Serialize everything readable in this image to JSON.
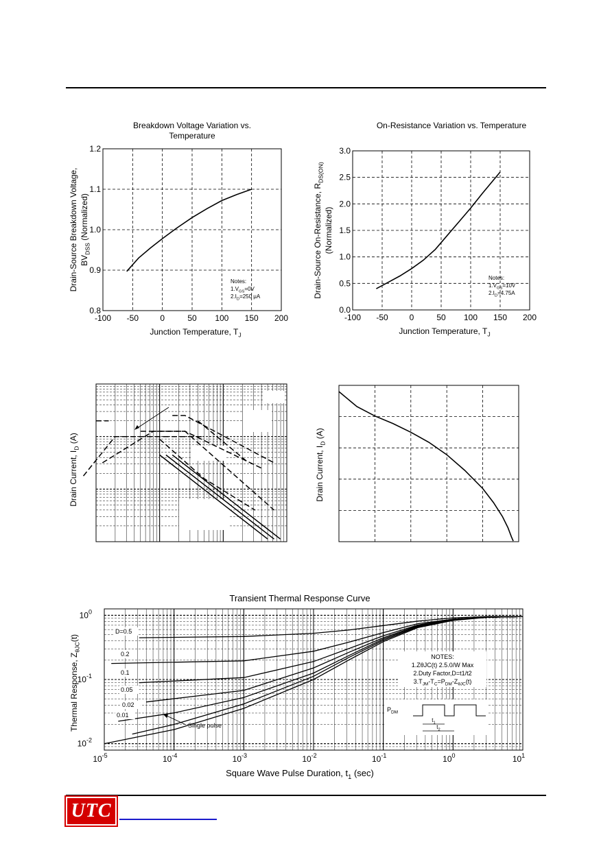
{
  "page": {
    "logo_text": "UTC"
  },
  "chart_data": [
    {
      "id": "bv",
      "type": "line",
      "title_lines": [
        "Breakdown Voltage Variation vs.",
        "Temperature"
      ],
      "xlabel": "Junction Temperature, T",
      "xlabel_sub": "J",
      "ylabel_line1": "Drain-Source Breakdown Voltage,",
      "ylabel_line2": "BV",
      "ylabel_line2_sub": "DSS",
      "ylabel_line2_tail": " (Normalized)",
      "xlim": [
        -100,
        200
      ],
      "ylim": [
        0.8,
        1.2
      ],
      "xticks": [
        -100,
        -50,
        0,
        50,
        100,
        150,
        200
      ],
      "yticks": [
        0.8,
        0.9,
        1.0,
        1.1,
        1.2
      ],
      "ytick_labels": [
        "0.8",
        "0.9",
        "1.0",
        "1.1",
        "1.2"
      ],
      "grid": true,
      "notes": [
        "Notes:",
        "1.V",
        "GS",
        "=0V",
        "2.I",
        "D",
        "=250 μA"
      ],
      "series": [
        {
          "x": [
            -60,
            -40,
            -20,
            0,
            25,
            50,
            75,
            100,
            125,
            150
          ],
          "y": [
            0.897,
            0.93,
            0.955,
            0.978,
            1.005,
            1.03,
            1.052,
            1.072,
            1.087,
            1.1
          ]
        }
      ]
    },
    {
      "id": "rds",
      "type": "line",
      "title_lines": [
        "On-Resistance Variation vs. Temperature"
      ],
      "xlabel": "Junction Temperature, T",
      "xlabel_sub": "J",
      "ylabel_line1": "Drain-Source On-Resistance, R",
      "ylabel_line1_sub": "DS(ON)",
      "ylabel_line2": "(Normalized)",
      "xlim": [
        -100,
        200
      ],
      "ylim": [
        0,
        3
      ],
      "xticks": [
        -100,
        -50,
        0,
        50,
        100,
        150,
        200
      ],
      "yticks": [
        0,
        0.5,
        1.0,
        1.5,
        2.0,
        2.5,
        3.0
      ],
      "ytick_labels": [
        "0.0",
        "0.5",
        "1.0",
        "1.5",
        "2.0",
        "2.5",
        "3.0"
      ],
      "grid": true,
      "notes": [
        "Notes:",
        "1.V",
        "GS",
        "=10V",
        "2.I",
        "D",
        "=4.75A"
      ],
      "series": [
        {
          "x": [
            -60,
            -40,
            -20,
            0,
            20,
            40,
            60,
            80,
            100,
            120,
            150
          ],
          "y": [
            0.4,
            0.52,
            0.64,
            0.78,
            0.94,
            1.14,
            1.4,
            1.66,
            1.92,
            2.2,
            2.6
          ]
        }
      ]
    },
    {
      "id": "soa",
      "type": "line",
      "ylabel": "Drain Current, I",
      "ylabel_sub": "D",
      "ylabel_tail": " (A)",
      "scale": "log-log",
      "x_decades": 3,
      "y_decades": 3,
      "series": [
        {
          "x": [
            -0.2,
            0.3,
            1.7
          ],
          "y": [
            0.05,
            0.8,
            0.8
          ],
          "dash": true
        },
        {
          "x": [
            0.1,
            0.9,
            1.4,
            2.8
          ],
          "y": [
            0.3,
            0.9,
            0.9,
            -0.6
          ],
          "dash": true
        },
        {
          "x": [
            0.7,
            1.4,
            2.6
          ],
          "y": [
            0.9,
            0.9,
            0.2
          ],
          "dash": true
        },
        {
          "x": [
            1.0,
            1.7,
            2.5
          ],
          "y": [
            0.75,
            0.0,
            -0.6
          ],
          "dash": true
        },
        {
          "x": [
            1.2,
            1.4,
            2.8
          ],
          "y": [
            1.2,
            1.2,
            0.3
          ],
          "dash": true
        },
        {
          "x": [
            1.6,
            2.4
          ],
          "y": [
            1.1,
            0.3
          ],
          "dash": true
        },
        {
          "x": [
            0.0,
            0.2
          ],
          "y": [
            1.1,
            1.1
          ],
          "dash": true
        },
        {
          "x": [
            1.0,
            2.7
          ],
          "y": [
            0.45,
            -1.15
          ],
          "dash": false
        },
        {
          "x": [
            1.1,
            2.8
          ],
          "y": [
            0.45,
            -1.15
          ],
          "dash": false
        },
        {
          "x": [
            1.2,
            2.9
          ],
          "y": [
            0.45,
            -1.15
          ],
          "dash": false
        }
      ]
    },
    {
      "id": "derating",
      "type": "line",
      "ylabel": "Drain Current, I",
      "ylabel_sub": "D",
      "ylabel_tail": " (A)",
      "xlim": [
        0,
        5
      ],
      "ylim": [
        0,
        5
      ],
      "grid": true,
      "series": [
        {
          "x": [
            0,
            0.5,
            1.0,
            1.5,
            2.0,
            2.5,
            3.0,
            3.5,
            4.0,
            4.3,
            4.55,
            4.7,
            4.8,
            4.85
          ],
          "y": [
            4.8,
            4.32,
            4.02,
            3.78,
            3.5,
            3.18,
            2.78,
            2.28,
            1.7,
            1.25,
            0.8,
            0.45,
            0.15,
            0.02
          ]
        }
      ]
    },
    {
      "id": "zth",
      "type": "line",
      "title": "Transient Thermal Response Curve",
      "xlabel": "Square Wave Pulse Duration, t",
      "xlabel_sub": "1",
      "xlabel_tail": " (sec)",
      "ylabel": "Thermal Response, Z",
      "ylabel_sub": "θJC",
      "ylabel_tail": "(t)",
      "scale": "log-log",
      "xlim_exp": [
        -5,
        1
      ],
      "ylim_exp": [
        -2,
        0
      ],
      "xtick_base": "10",
      "xtick_exps": [
        "-5",
        "-4",
        "-3",
        "-2",
        "-1",
        "0",
        "1"
      ],
      "ytick_exps": [
        "-2",
        "-1",
        "0"
      ],
      "grid": true,
      "notes": [
        "NOTES:",
        "1.ZθJC(t)  2.5.0/W Max",
        "2.Duty Factor,D=t1/t2",
        "3.T",
        "JM",
        "-T",
        "C",
        "=P",
        "DM",
        "-Z",
        "θJC",
        "(t)"
      ],
      "pdm_label": "P",
      "pdm_sub": "DM",
      "t1_label": "t",
      "t1_sub": "1",
      "t2_label": "t",
      "t2_sub": "2",
      "single_pulse_label": "Single pulse",
      "series": [
        {
          "name": "D=0.5",
          "x": [
            -4.5,
            -3,
            -2,
            -1.5,
            -1,
            -0.5,
            0,
            0.5,
            1
          ],
          "y": [
            -0.35,
            -0.33,
            -0.28,
            -0.23,
            -0.16,
            -0.09,
            -0.04,
            -0.02,
            -0.02
          ]
        },
        {
          "name": "0.2",
          "x": [
            -4.9,
            -3,
            -2,
            -1.5,
            -1,
            -0.5,
            0,
            0.5,
            1
          ],
          "y": [
            -0.75,
            -0.71,
            -0.56,
            -0.42,
            -0.27,
            -0.13,
            -0.06,
            -0.03,
            -0.02
          ]
        },
        {
          "name": "0.1",
          "x": [
            -4.5,
            -3,
            -2,
            -1.5,
            -1,
            -0.5,
            0,
            0.5,
            1
          ],
          "y": [
            -1.05,
            -0.97,
            -0.72,
            -0.52,
            -0.32,
            -0.15,
            -0.06,
            -0.03,
            -0.02
          ]
        },
        {
          "name": "0.05",
          "x": [
            -4.4,
            -3,
            -2,
            -1.5,
            -1,
            -0.5,
            0,
            0.5,
            1
          ],
          "y": [
            -1.35,
            -1.17,
            -0.82,
            -0.58,
            -0.35,
            -0.16,
            -0.07,
            -0.03,
            -0.02
          ]
        },
        {
          "name": "0.02",
          "x": [
            -4.8,
            -4,
            -3,
            -2,
            -1.5,
            -1,
            -0.5,
            0,
            0.5,
            1
          ],
          "y": [
            -1.65,
            -1.52,
            -1.28,
            -0.9,
            -0.63,
            -0.37,
            -0.17,
            -0.07,
            -0.03,
            -0.02
          ]
        },
        {
          "name": "0.01",
          "x": [
            -4.6,
            -4,
            -3,
            -2,
            -1.5,
            -1,
            -0.5,
            0,
            0.5,
            1
          ],
          "y": [
            -1.85,
            -1.7,
            -1.38,
            -0.95,
            -0.66,
            -0.39,
            -0.18,
            -0.07,
            -0.03,
            -0.02
          ]
        },
        {
          "name": "Single pulse",
          "x": [
            -5,
            -4,
            -3,
            -2,
            -1.5,
            -1,
            -0.5,
            0,
            0.5,
            1
          ],
          "y": [
            -2.0,
            -1.78,
            -1.45,
            -1.0,
            -0.7,
            -0.41,
            -0.19,
            -0.08,
            -0.03,
            -0.02
          ]
        }
      ],
      "series_labels": [
        "D=0.5",
        "0.2",
        "0.1",
        "0.05",
        "0.02",
        "0.01"
      ]
    }
  ]
}
